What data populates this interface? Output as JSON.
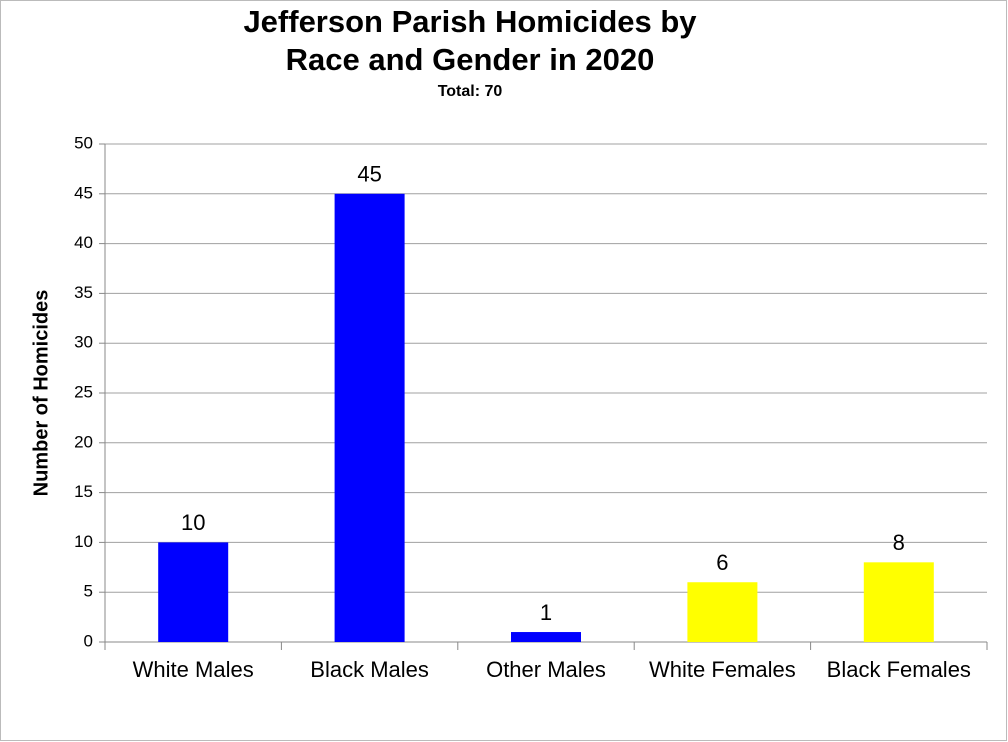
{
  "chart_data": {
    "type": "bar",
    "title": [
      "Jefferson Parish Homicides by",
      "Race and Gender in 2020"
    ],
    "subtitle": "Total: 70",
    "y_label": "Number of Homicides",
    "categories": [
      "White Males",
      "Black Males",
      "Other Males",
      "White Females",
      "Black Females"
    ],
    "values": [
      10,
      45,
      1,
      6,
      8
    ],
    "colors": [
      "#0000ff",
      "#0000ff",
      "#0000ff",
      "#ffff00",
      "#ffff00"
    ],
    "ylim": [
      0,
      50
    ],
    "yticks": [
      0,
      5,
      10,
      15,
      20,
      25,
      30,
      35,
      40,
      45,
      50
    ],
    "grid": true
  }
}
